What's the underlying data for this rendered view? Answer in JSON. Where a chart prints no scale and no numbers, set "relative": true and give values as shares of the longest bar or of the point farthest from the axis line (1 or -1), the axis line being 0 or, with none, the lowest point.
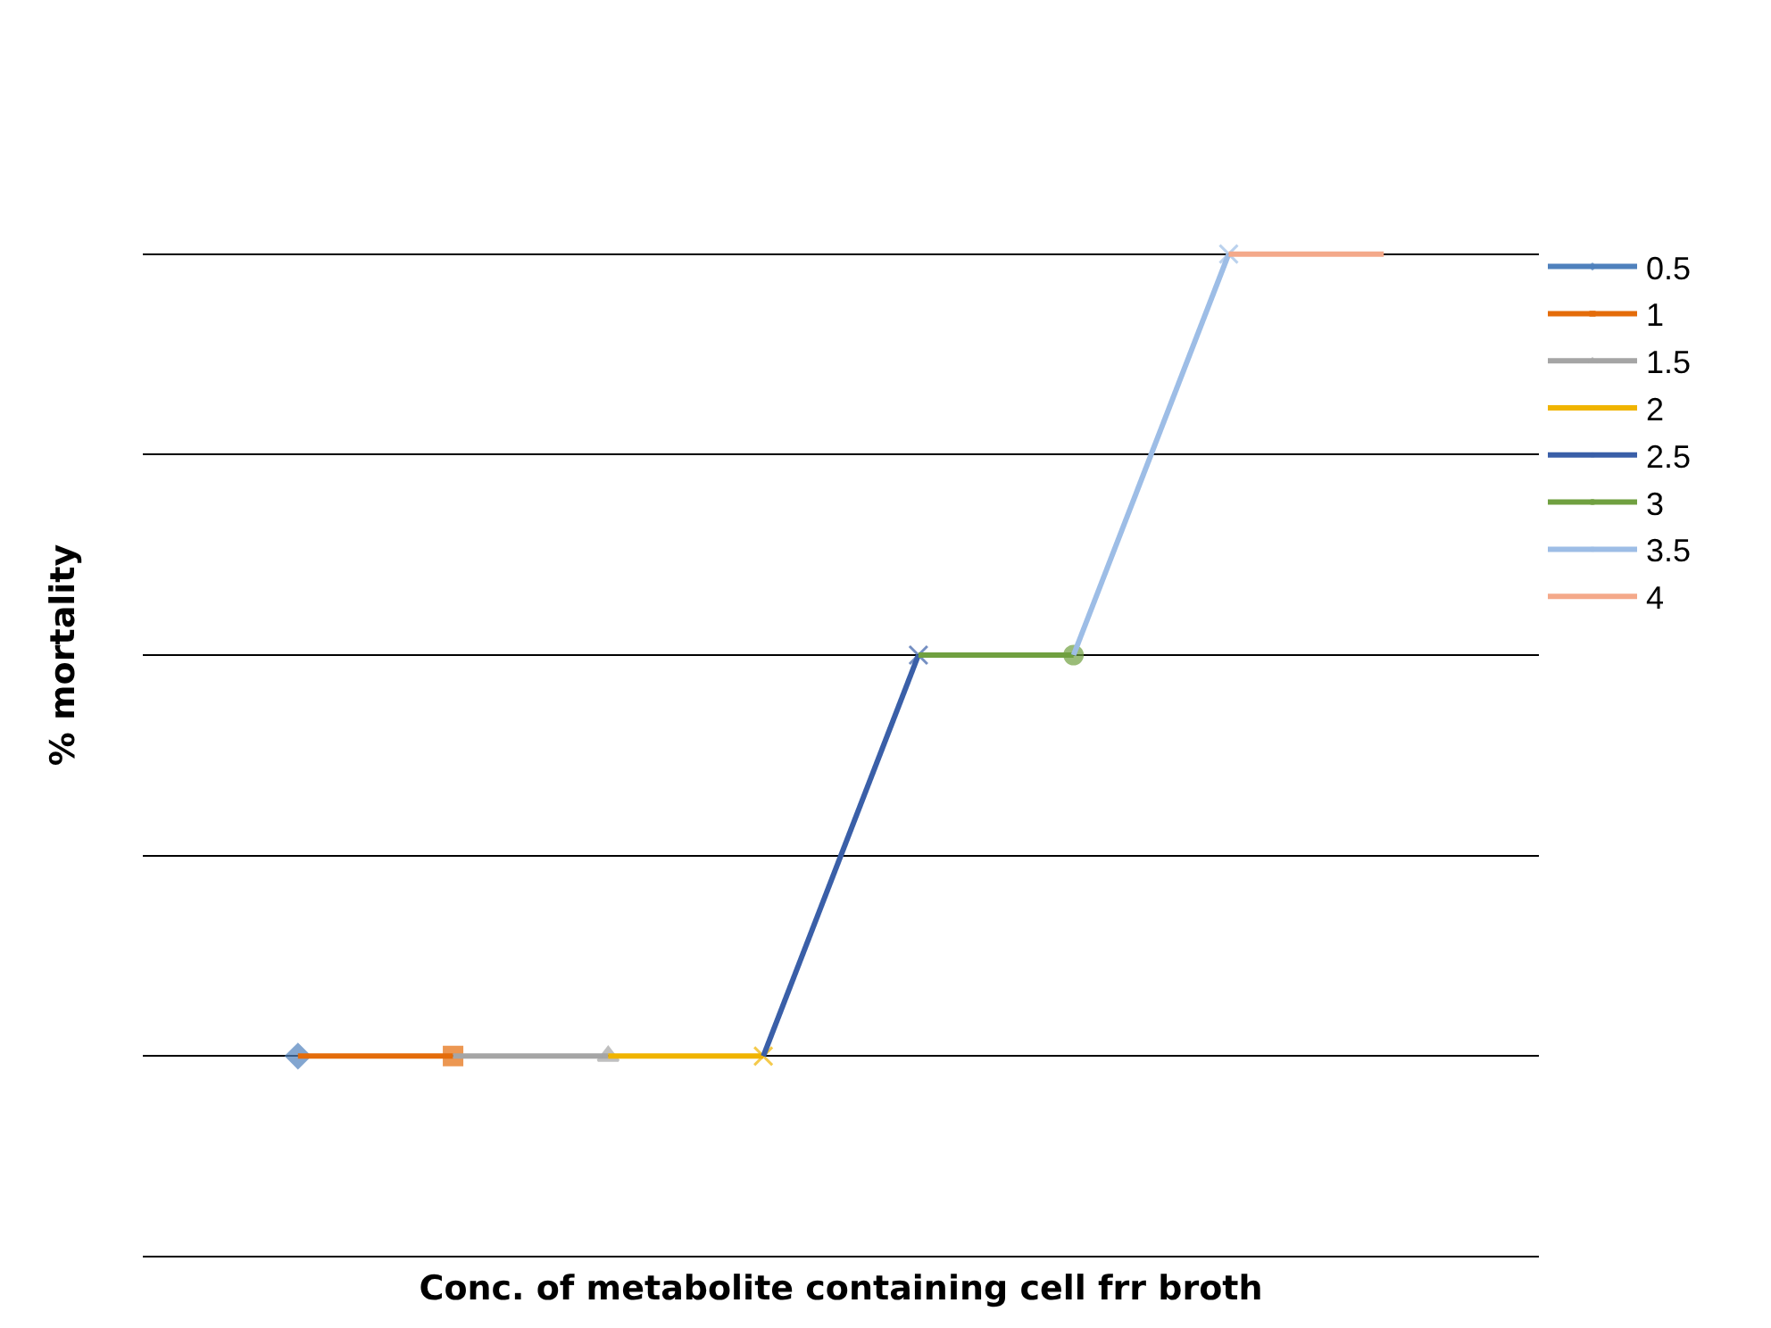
{
  "chart_data": {
    "type": "line",
    "relative": true,
    "xlabel": "Conc. of metabolite containing cell frr broth",
    "ylabel": "% mortality",
    "categories": [
      null,
      null,
      null,
      null,
      null,
      null,
      null,
      null
    ],
    "series": [
      {
        "name": "0.5",
        "color": "#4f81bd",
        "marker": "diamond",
        "values": [
          0.2,
          null,
          null,
          null,
          null,
          null,
          null,
          null
        ]
      },
      {
        "name": "1",
        "color": "#e46c0a",
        "marker": "square",
        "values": [
          0.2,
          0.2,
          null,
          null,
          null,
          null,
          null,
          null
        ]
      },
      {
        "name": "1.5",
        "color": "#a5a5a5",
        "marker": "triangle",
        "values": [
          null,
          0.2,
          0.2,
          null,
          null,
          null,
          null,
          null
        ]
      },
      {
        "name": "2",
        "color": "#f0b400",
        "marker": "cross",
        "values": [
          null,
          null,
          0.2,
          0.2,
          null,
          null,
          null,
          null
        ]
      },
      {
        "name": "2.5",
        "color": "#3a5fa8",
        "marker": "cross",
        "values": [
          null,
          null,
          null,
          0.2,
          0.6,
          null,
          null,
          null
        ]
      },
      {
        "name": "3",
        "color": "#70a040",
        "marker": "circle",
        "values": [
          null,
          null,
          null,
          null,
          0.6,
          0.6,
          null,
          null
        ]
      },
      {
        "name": "3.5",
        "color": "#9dbde6",
        "marker": "cross",
        "values": [
          null,
          null,
          null,
          null,
          null,
          0.6,
          1,
          null
        ]
      },
      {
        "name": "4",
        "color": "#f4a98a",
        "marker": "none",
        "values": [
          null,
          null,
          null,
          null,
          null,
          null,
          1,
          1
        ]
      }
    ],
    "grid": "y",
    "legend": "right"
  }
}
